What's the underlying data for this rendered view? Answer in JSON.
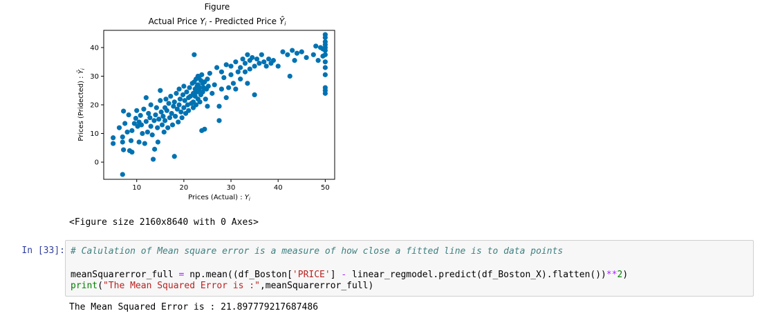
{
  "figure": {
    "suptitle": "Figure",
    "size_text": "<Figure size 2160x8640 with 0 Axes>"
  },
  "chart_data": {
    "type": "scatter",
    "title": "Actual Price Y_i - Predicted Price Ŷ_i",
    "xlabel": "Prices (Actual) : Y_i",
    "ylabel": "Prices (Pridected) : Ŷ_i",
    "xlim": [
      3,
      52
    ],
    "ylim": [
      -6,
      46
    ],
    "xticks": [
      10,
      20,
      30,
      40,
      50
    ],
    "yticks": [
      0,
      10,
      20,
      30,
      40
    ],
    "grid": false,
    "color": "#0072b2",
    "points": [
      [
        5.0,
        8.5
      ],
      [
        5.0,
        6.5
      ],
      [
        6.3,
        12.0
      ],
      [
        7.0,
        8.8
      ],
      [
        7.0,
        7.0
      ],
      [
        7.2,
        4.3
      ],
      [
        7.0,
        -4.3
      ],
      [
        7.2,
        17.8
      ],
      [
        7.5,
        13.5
      ],
      [
        8.0,
        10.5
      ],
      [
        8.3,
        16.5
      ],
      [
        8.5,
        4.0
      ],
      [
        8.8,
        7.5
      ],
      [
        9.0,
        3.5
      ],
      [
        9.0,
        11.0
      ],
      [
        9.5,
        13.5
      ],
      [
        9.8,
        15.3
      ],
      [
        10.0,
        18.0
      ],
      [
        10.2,
        12.5
      ],
      [
        10.5,
        7.0
      ],
      [
        10.5,
        14.0
      ],
      [
        10.8,
        16.3
      ],
      [
        11.0,
        13.0
      ],
      [
        11.2,
        10.0
      ],
      [
        11.5,
        18.5
      ],
      [
        11.7,
        6.5
      ],
      [
        12.0,
        22.5
      ],
      [
        12.0,
        14.2
      ],
      [
        12.3,
        10.5
      ],
      [
        12.5,
        17.0
      ],
      [
        12.8,
        15.5
      ],
      [
        13.0,
        12.5
      ],
      [
        13.0,
        20.0
      ],
      [
        13.3,
        9.5
      ],
      [
        13.5,
        1.0
      ],
      [
        13.7,
        14.5
      ],
      [
        13.8,
        4.5
      ],
      [
        14.0,
        16.5
      ],
      [
        14.2,
        19.0
      ],
      [
        14.4,
        12.0
      ],
      [
        14.5,
        7.0
      ],
      [
        14.7,
        15.0
      ],
      [
        15.0,
        25.0
      ],
      [
        15.0,
        21.5
      ],
      [
        15.2,
        17.5
      ],
      [
        15.4,
        13.0
      ],
      [
        15.6,
        16.0
      ],
      [
        15.8,
        10.5
      ],
      [
        16.0,
        19.0
      ],
      [
        16.0,
        14.5
      ],
      [
        16.2,
        22.0
      ],
      [
        16.4,
        18.0
      ],
      [
        16.6,
        12.0
      ],
      [
        16.8,
        20.5
      ],
      [
        17.0,
        15.5
      ],
      [
        17.2,
        23.0
      ],
      [
        17.4,
        17.0
      ],
      [
        17.6,
        13.0
      ],
      [
        17.8,
        19.5
      ],
      [
        18.0,
        21.0
      ],
      [
        18.0,
        2.0
      ],
      [
        18.2,
        16.0
      ],
      [
        18.4,
        24.0
      ],
      [
        18.6,
        18.5
      ],
      [
        18.8,
        14.0
      ],
      [
        19.0,
        20.0
      ],
      [
        19.0,
        25.5
      ],
      [
        19.2,
        22.0
      ],
      [
        19.4,
        17.5
      ],
      [
        19.6,
        15.5
      ],
      [
        19.8,
        23.5
      ],
      [
        20.0,
        19.0
      ],
      [
        20.0,
        26.5
      ],
      [
        20.2,
        21.5
      ],
      [
        20.4,
        17.0
      ],
      [
        20.6,
        24.5
      ],
      [
        20.8,
        20.0
      ],
      [
        21.0,
        22.5
      ],
      [
        21.0,
        18.0
      ],
      [
        21.2,
        26.0
      ],
      [
        21.4,
        23.0
      ],
      [
        21.6,
        20.5
      ],
      [
        21.8,
        27.5
      ],
      [
        22.0,
        24.0
      ],
      [
        22.0,
        21.0
      ],
      [
        22.0,
        19.0
      ],
      [
        22.2,
        28.0
      ],
      [
        22.2,
        37.5
      ],
      [
        22.4,
        25.5
      ],
      [
        22.4,
        23.0
      ],
      [
        22.6,
        29.0
      ],
      [
        22.6,
        20.0
      ],
      [
        22.8,
        26.5
      ],
      [
        22.8,
        24.5
      ],
      [
        23.0,
        30.0
      ],
      [
        23.0,
        22.0
      ],
      [
        23.0,
        27.0
      ],
      [
        23.2,
        25.0
      ],
      [
        23.2,
        29.5
      ],
      [
        23.4,
        21.0
      ],
      [
        23.4,
        26.0
      ],
      [
        23.6,
        28.5
      ],
      [
        23.6,
        23.5
      ],
      [
        23.8,
        30.5
      ],
      [
        23.8,
        11.0
      ],
      [
        24.0,
        27.5
      ],
      [
        24.0,
        24.5
      ],
      [
        24.2,
        26.0
      ],
      [
        24.4,
        28.0
      ],
      [
        24.4,
        11.5
      ],
      [
        24.6,
        22.0
      ],
      [
        24.8,
        25.5
      ],
      [
        25.0,
        29.0
      ],
      [
        25.0,
        19.5
      ],
      [
        25.2,
        26.5
      ],
      [
        25.5,
        31.0
      ],
      [
        26.0,
        24.0
      ],
      [
        26.5,
        27.0
      ],
      [
        27.0,
        33.0
      ],
      [
        27.5,
        19.5
      ],
      [
        27.5,
        14.5
      ],
      [
        28.0,
        25.5
      ],
      [
        28.0,
        31.5
      ],
      [
        28.5,
        29.5
      ],
      [
        29.0,
        34.0
      ],
      [
        29.0,
        22.5
      ],
      [
        29.5,
        26.0
      ],
      [
        30.0,
        30.5
      ],
      [
        30.0,
        33.5
      ],
      [
        30.5,
        27.5
      ],
      [
        31.0,
        35.0
      ],
      [
        31.0,
        25.5
      ],
      [
        31.5,
        31.5
      ],
      [
        32.0,
        33.0
      ],
      [
        32.0,
        29.0
      ],
      [
        32.5,
        36.0
      ],
      [
        33.0,
        34.5
      ],
      [
        33.0,
        31.5
      ],
      [
        33.5,
        37.5
      ],
      [
        33.5,
        27.5
      ],
      [
        34.0,
        35.5
      ],
      [
        34.0,
        32.5
      ],
      [
        34.5,
        36.5
      ],
      [
        35.0,
        33.5
      ],
      [
        35.0,
        23.5
      ],
      [
        35.5,
        36.0
      ],
      [
        36.0,
        34.5
      ],
      [
        36.5,
        37.5
      ],
      [
        37.0,
        35.0
      ],
      [
        37.5,
        33.5
      ],
      [
        38.0,
        36.0
      ],
      [
        38.5,
        34.5
      ],
      [
        39.0,
        35.5
      ],
      [
        40.0,
        33.5
      ],
      [
        41.0,
        38.5
      ],
      [
        42.0,
        37.5
      ],
      [
        42.5,
        30.0
      ],
      [
        43.0,
        39.0
      ],
      [
        43.5,
        35.5
      ],
      [
        44.0,
        38.0
      ],
      [
        45.0,
        38.5
      ],
      [
        46.0,
        36.5
      ],
      [
        47.5,
        37.5
      ],
      [
        48.0,
        40.5
      ],
      [
        49.0,
        40.0
      ],
      [
        50.0,
        44.5
      ],
      [
        50.0,
        43.5
      ],
      [
        50.0,
        42.0
      ],
      [
        50.0,
        41.0
      ],
      [
        50.0,
        40.0
      ],
      [
        50.0,
        39.0
      ],
      [
        50.0,
        37.5
      ],
      [
        50.0,
        35.0
      ],
      [
        50.0,
        33.0
      ],
      [
        50.0,
        30.5
      ],
      [
        50.0,
        26.0
      ],
      [
        50.0,
        25.0
      ],
      [
        50.0,
        24.0
      ],
      [
        49.5,
        37.0
      ],
      [
        49.5,
        39.5
      ],
      [
        48.5,
        35.5
      ]
    ]
  },
  "output_figure_size": "<Figure size 2160x8640 with 0 Axes>",
  "cell": {
    "prompt": "In [33]:",
    "comment": "# Calulation of Mean square error is a measure of how close a fitted line is to data points",
    "line1": {
      "a": "meanSquarerror_full ",
      "eq": "=",
      "b": " np.mean((df_Boston[",
      "str": "'PRICE'",
      "c": "] ",
      "minus": "-",
      "d": " linear_regmodel.predict(df_Boston_X).flatten())",
      "pow": "**",
      "num": "2",
      "e": ")"
    },
    "line2": {
      "kw": "print",
      "a": "(",
      "str": "\"The Mean Squared Error is :\"",
      "b": ",meanSquarerror_full)"
    }
  },
  "output": "The Mean Squared Error is : 21.897779217687486"
}
